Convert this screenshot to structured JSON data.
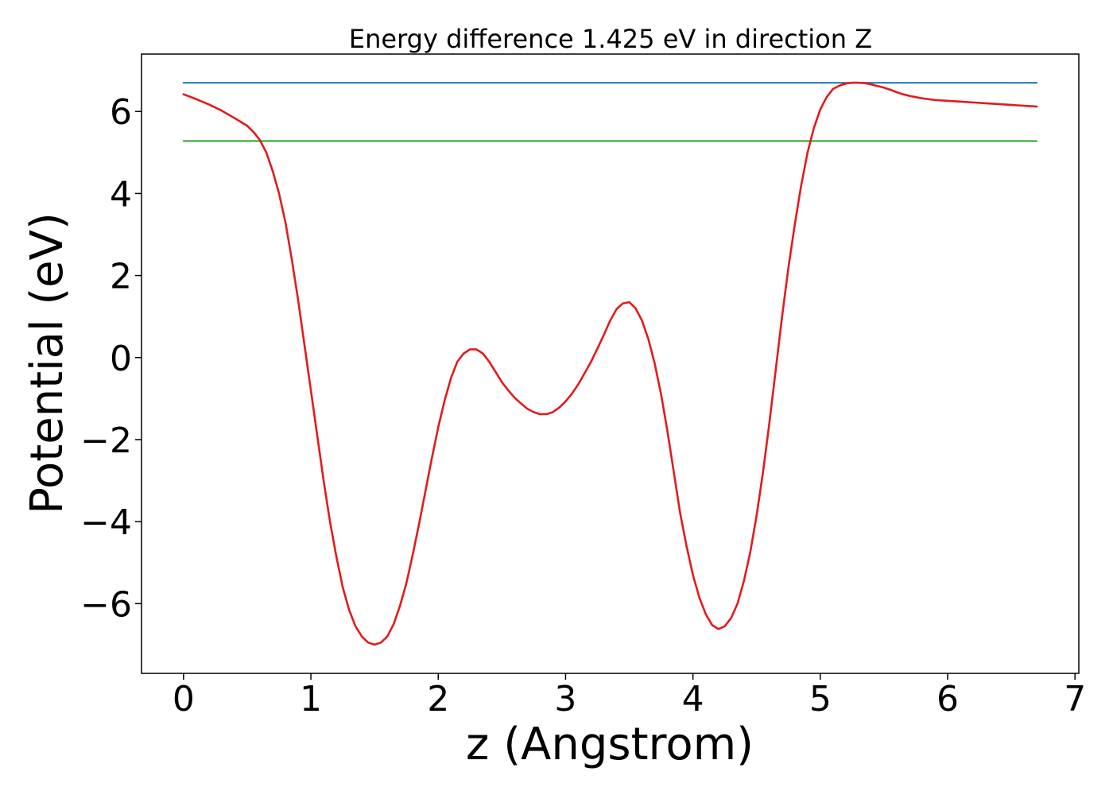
{
  "chart_data": {
    "type": "line",
    "title": "Energy difference 1.425 eV in direction Z",
    "xlabel": "z (Angstrom)",
    "ylabel": "Potential (eV)",
    "xlim": [
      -0.33,
      7.03
    ],
    "ylim": [
      -7.7,
      7.4
    ],
    "xticks": [
      0,
      1,
      2,
      3,
      4,
      5,
      6,
      7
    ],
    "xtick_labels": [
      "0",
      "1",
      "2",
      "3",
      "4",
      "5",
      "6",
      "7"
    ],
    "yticks": [
      -6,
      -4,
      -2,
      0,
      2,
      4,
      6
    ],
    "ytick_labels": [
      "−6",
      "−4",
      "−2",
      "0",
      "2",
      "4",
      "6"
    ],
    "grid": false,
    "series": [
      {
        "color": "#1f77b4",
        "x": [
          0.0,
          6.7
        ],
        "y": [
          6.7,
          6.7
        ]
      },
      {
        "color": "#2ca02c",
        "x": [
          0.0,
          6.7
        ],
        "y": [
          5.28,
          5.28
        ]
      },
      {
        "color": "#e41a1c",
        "x": [
          0.0,
          0.1,
          0.2,
          0.3,
          0.4,
          0.5,
          0.55,
          0.6,
          0.65,
          0.7,
          0.75,
          0.8,
          0.85,
          0.9,
          0.95,
          1.0,
          1.05,
          1.1,
          1.15,
          1.2,
          1.25,
          1.3,
          1.35,
          1.4,
          1.45,
          1.5,
          1.55,
          1.6,
          1.65,
          1.7,
          1.75,
          1.8,
          1.85,
          1.9,
          1.95,
          2.0,
          2.05,
          2.1,
          2.15,
          2.2,
          2.25,
          2.3,
          2.35,
          2.4,
          2.45,
          2.5,
          2.55,
          2.6,
          2.65,
          2.7,
          2.75,
          2.8,
          2.85,
          2.9,
          2.95,
          3.0,
          3.05,
          3.1,
          3.15,
          3.2,
          3.25,
          3.3,
          3.35,
          3.4,
          3.45,
          3.5,
          3.55,
          3.6,
          3.65,
          3.7,
          3.75,
          3.8,
          3.85,
          3.9,
          3.95,
          4.0,
          4.05,
          4.1,
          4.15,
          4.2,
          4.25,
          4.3,
          4.35,
          4.4,
          4.45,
          4.5,
          4.55,
          4.6,
          4.65,
          4.7,
          4.75,
          4.8,
          4.85,
          4.9,
          4.95,
          5.0,
          5.05,
          5.1,
          5.15,
          5.2,
          5.25,
          5.3,
          5.35,
          5.4,
          5.45,
          5.5,
          5.55,
          5.6,
          5.65,
          5.7,
          5.75,
          5.8,
          5.85,
          5.9,
          5.95,
          6.0,
          6.05,
          6.1,
          6.15,
          6.2,
          6.25,
          6.3,
          6.35,
          6.4,
          6.45,
          6.5,
          6.55,
          6.6,
          6.65,
          6.7
        ],
        "y": [
          6.42,
          6.3,
          6.17,
          6.02,
          5.84,
          5.65,
          5.5,
          5.3,
          5.0,
          4.55,
          4.0,
          3.3,
          2.4,
          1.4,
          0.3,
          -0.8,
          -1.9,
          -3.0,
          -4.0,
          -4.85,
          -5.6,
          -6.15,
          -6.55,
          -6.8,
          -6.95,
          -7.0,
          -6.95,
          -6.8,
          -6.5,
          -6.05,
          -5.5,
          -4.8,
          -4.05,
          -3.25,
          -2.45,
          -1.7,
          -1.05,
          -0.5,
          -0.1,
          0.1,
          0.2,
          0.2,
          0.1,
          -0.1,
          -0.35,
          -0.6,
          -0.8,
          -0.98,
          -1.12,
          -1.25,
          -1.33,
          -1.38,
          -1.38,
          -1.33,
          -1.22,
          -1.07,
          -0.88,
          -0.65,
          -0.38,
          -0.1,
          0.22,
          0.55,
          0.9,
          1.18,
          1.32,
          1.35,
          1.2,
          0.9,
          0.45,
          -0.15,
          -0.9,
          -1.8,
          -2.8,
          -3.8,
          -4.6,
          -5.3,
          -5.85,
          -6.25,
          -6.52,
          -6.62,
          -6.55,
          -6.35,
          -6.0,
          -5.45,
          -4.75,
          -3.85,
          -2.8,
          -1.6,
          -0.3,
          1.0,
          2.2,
          3.25,
          4.2,
          5.0,
          5.6,
          6.05,
          6.35,
          6.55,
          6.63,
          6.68,
          6.7,
          6.7,
          6.69,
          6.66,
          6.62,
          6.58,
          6.53,
          6.47,
          6.42,
          6.38,
          6.35,
          6.32,
          6.3,
          6.28,
          6.27,
          6.26,
          6.25,
          6.24,
          6.23,
          6.22,
          6.21,
          6.2,
          6.19,
          6.18,
          6.17,
          6.16,
          6.15,
          6.14,
          6.13,
          6.12
        ]
      }
    ]
  }
}
